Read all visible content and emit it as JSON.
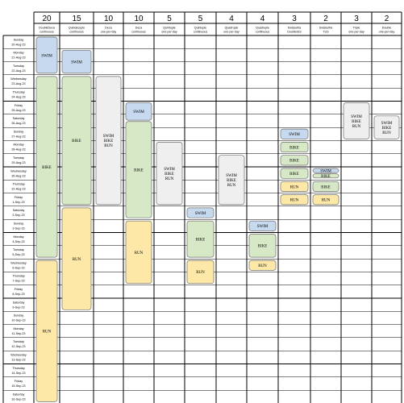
{
  "colors": {
    "swim": "#c6d9ef",
    "bike": "#d7e8c6",
    "run": "#fde8a8",
    "combined": "#efefef",
    "segment_border": "#6f6f6f",
    "grid": "#000000"
  },
  "events": [
    {
      "id": "ev1",
      "count": "20",
      "type": "DoubleDeca continuous"
    },
    {
      "id": "ev2",
      "count": "15",
      "type": "Quindecuple continuous"
    },
    {
      "id": "ev3",
      "count": "10",
      "type": "Deca one-per-day"
    },
    {
      "id": "ev4",
      "count": "10",
      "type": "Deca continuous"
    },
    {
      "id": "ev5",
      "count": "5",
      "type": "Quintuple one-per-day"
    },
    {
      "id": "ev6",
      "count": "5",
      "type": "Quintuple continuous"
    },
    {
      "id": "ev7",
      "count": "4",
      "type": "Quadruple one-per-day"
    },
    {
      "id": "ev8",
      "count": "4",
      "type": "Quadruple continuous"
    },
    {
      "id": "ev9",
      "count": "3",
      "type": "Swissultra DoubleIUS"
    },
    {
      "id": "ev10",
      "count": "2",
      "type": "Swissultra TUS"
    },
    {
      "id": "ev11",
      "count": "3",
      "type": "Triple one-per-day"
    },
    {
      "id": "ev12",
      "count": "2",
      "type": "Double one-per-day"
    }
  ],
  "days": [
    {
      "name": "Sunday",
      "date": "20-Aug-23"
    },
    {
      "name": "Monday",
      "date": "21-Aug-23"
    },
    {
      "name": "Tuesday",
      "date": "22-Aug-23"
    },
    {
      "name": "Wednesday",
      "date": "23-Aug-23"
    },
    {
      "name": "Thursday",
      "date": "24-Aug-23"
    },
    {
      "name": "Friday",
      "date": "25-Aug-23"
    },
    {
      "name": "Saturday",
      "date": "26-Aug-23"
    },
    {
      "name": "Sunday",
      "date": "27-Aug-23"
    },
    {
      "name": "Monday",
      "date": "28-Aug-23"
    },
    {
      "name": "Tuesday",
      "date": "29-Aug-23"
    },
    {
      "name": "Wednesday",
      "date": "30-Aug-23"
    },
    {
      "name": "Thursday",
      "date": "31-Aug-23"
    },
    {
      "name": "Friday",
      "date": "1-Sep-23"
    },
    {
      "name": "Saturday",
      "date": "2-Sep-23"
    },
    {
      "name": "Sunday",
      "date": "3-Sep-23"
    },
    {
      "name": "Monday",
      "date": "4-Sep-23"
    },
    {
      "name": "Tuesday",
      "date": "5-Sep-23"
    },
    {
      "name": "Wednesday",
      "date": "6-Sep-23"
    },
    {
      "name": "Thursday",
      "date": "7-Sep-23"
    },
    {
      "name": "Friday",
      "date": "8-Sep-23"
    },
    {
      "name": "Saturday",
      "date": "9-Sep-23"
    },
    {
      "name": "Sunday",
      "date": "10-Sep-23"
    },
    {
      "name": "Monday",
      "date": "11-Sep-23"
    },
    {
      "name": "Tuesday",
      "date": "12-Sep-23"
    },
    {
      "name": "Wednesday",
      "date": "13-Sep-23"
    },
    {
      "name": "Thursday",
      "date": "14-Sep-23"
    },
    {
      "name": "Friday",
      "date": "15-Sep-23"
    },
    {
      "name": "Saturday",
      "date": "16-Sep-23"
    }
  ],
  "segments": [
    {
      "event": "ev1",
      "kind": "swim",
      "lines": [
        "SWIM"
      ],
      "from": "20-Aug-23",
      "to": "22-Aug-23"
    },
    {
      "event": "ev1",
      "kind": "bike",
      "lines": [
        "BIKE"
      ],
      "from": "23-Aug-23",
      "to": "5-Sep-23"
    },
    {
      "event": "ev1",
      "kind": "run",
      "lines": [
        "RUN"
      ],
      "from": "6-Sep-23",
      "to": "16-Sep-23"
    },
    {
      "event": "ev2",
      "kind": "swim",
      "lines": [
        "SWIM"
      ],
      "from": "21-Aug-23",
      "to": "22-Aug-23"
    },
    {
      "event": "ev2",
      "kind": "bike",
      "lines": [
        "BIKE"
      ],
      "from": "23-Aug-23",
      "to": "1-Sep-23"
    },
    {
      "event": "ev2",
      "kind": "run",
      "lines": [
        "RUN"
      ],
      "from": "2-Sep-23",
      "to": "9-Sep-23"
    },
    {
      "event": "ev3",
      "kind": "combined",
      "lines": [
        "SWIM",
        "BIKE",
        "RUN"
      ],
      "from": "23-Aug-23",
      "to": "1-Sep-23"
    },
    {
      "event": "ev4",
      "kind": "swim",
      "lines": [
        "SWIM"
      ],
      "from": "25-Aug-23",
      "to": "26-Aug-23"
    },
    {
      "event": "ev4",
      "kind": "bike",
      "lines": [
        "BIKE"
      ],
      "from": "26-Aug-23",
      "to": "2-Sep-23"
    },
    {
      "event": "ev4",
      "kind": "run",
      "lines": [
        "RUN"
      ],
      "from": "3-Sep-23",
      "to": "7-Sep-23"
    },
    {
      "event": "ev5",
      "kind": "combined",
      "lines": [
        "SWIM",
        "BIKE",
        "RUN"
      ],
      "from": "28-Aug-23",
      "to": "1-Sep-23"
    },
    {
      "event": "ev6",
      "kind": "swim",
      "lines": [
        "SWIM"
      ],
      "from": "2-Sep-23",
      "to": "2-Sep-23"
    },
    {
      "event": "ev6",
      "kind": "bike",
      "lines": [
        "BIKE"
      ],
      "from": "3-Sep-23",
      "to": "5-Sep-23"
    },
    {
      "event": "ev6",
      "kind": "run",
      "lines": [
        "RUN"
      ],
      "from": "6-Sep-23",
      "to": "7-Sep-23"
    },
    {
      "event": "ev7",
      "kind": "combined",
      "lines": [
        "SWIM",
        "BIKE",
        "RUN"
      ],
      "from": "29-Aug-23",
      "to": "1-Sep-23"
    },
    {
      "event": "ev8",
      "kind": "swim",
      "lines": [
        "SWIM"
      ],
      "from": "3-Sep-23",
      "to": "3-Sep-23"
    },
    {
      "event": "ev8",
      "kind": "bike",
      "lines": [
        "BIKE"
      ],
      "from": "4-Sep-23",
      "to": "5-Sep-23"
    },
    {
      "event": "ev8",
      "kind": "run",
      "lines": [
        "RUN"
      ],
      "from": "6-Sep-23",
      "to": "6-Sep-23"
    },
    {
      "event": "ev9",
      "kind": "swim",
      "lines": [
        "SWIM"
      ],
      "from": "27-Aug-23",
      "to": "27-Aug-23"
    },
    {
      "event": "ev9",
      "kind": "bike",
      "lines": [
        "BIKE"
      ],
      "from": "28-Aug-23",
      "to": "28-Aug-23"
    },
    {
      "event": "ev9",
      "kind": "bike",
      "lines": [
        "BIKE"
      ],
      "from": "29-Aug-23",
      "to": "29-Aug-23"
    },
    {
      "event": "ev9",
      "kind": "bike",
      "lines": [
        "BIKE"
      ],
      "from": "30-Aug-23",
      "to": "30-Aug-23"
    },
    {
      "event": "ev9",
      "kind": "run",
      "lines": [
        "RUN"
      ],
      "from": "31-Aug-23",
      "to": "31-Aug-23"
    },
    {
      "event": "ev9",
      "kind": "run",
      "lines": [
        "RUN"
      ],
      "from": "1-Sep-23",
      "to": "1-Sep-23"
    },
    {
      "event": "ev10",
      "kind": "swim",
      "lines": [
        "SWIM"
      ],
      "from": "30-Aug-23",
      "to": "30-Aug-23"
    },
    {
      "event": "ev10",
      "kind": "bike",
      "lines": [
        "BIKE"
      ],
      "from": "30-Aug-23",
      "to": "30-Aug-23"
    },
    {
      "event": "ev10",
      "kind": "bike",
      "lines": [
        "BIKE"
      ],
      "from": "31-Aug-23",
      "to": "31-Aug-23"
    },
    {
      "event": "ev10",
      "kind": "run",
      "lines": [
        "RUN"
      ],
      "from": "1-Sep-23",
      "to": "1-Sep-23"
    },
    {
      "event": "ev11",
      "kind": "combined",
      "lines": [
        "SWIM",
        "BIKE",
        "RUN"
      ],
      "from": "25-Aug-23",
      "to": "27-Aug-23"
    },
    {
      "event": "ev12",
      "kind": "combined",
      "lines": [
        "SWIM",
        "BIKE",
        "RUN"
      ],
      "from": "26-Aug-23",
      "to": "27-Aug-23"
    }
  ]
}
